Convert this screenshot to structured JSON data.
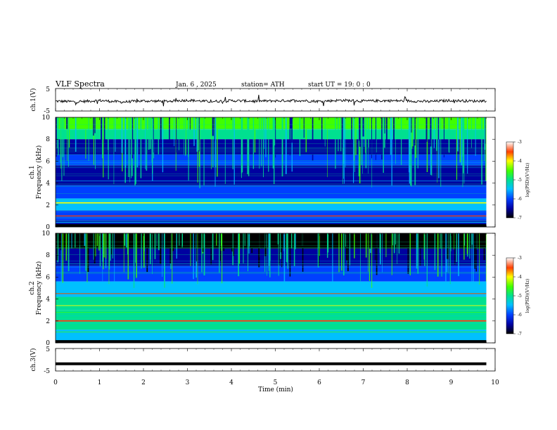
{
  "header": {
    "title": "VLF  Spectra",
    "date": "Jan. 6  , 2025",
    "station": "station= ATH",
    "start": "start  UT  =   19: 0  : 0"
  },
  "colors": {
    "colormap": [
      "#000000",
      "#0000a0",
      "#0040ff",
      "#00c0ff",
      "#00e090",
      "#40ff00",
      "#ffff00",
      "#ff4000",
      "#ffffff"
    ],
    "trace": "#000000"
  },
  "chart_data": [
    {
      "type": "line",
      "ylabel": "ch.1(V)",
      "ylim": [
        -5,
        5
      ],
      "yticks": [
        "5",
        "-5"
      ],
      "xlim": [
        0,
        10
      ],
      "x": [
        0,
        0.5,
        1,
        1.5,
        2,
        2.5,
        3,
        3.5,
        4,
        4.5,
        5,
        5.5,
        6,
        6.5,
        7,
        7.5,
        8,
        8.5,
        9,
        9.5,
        9.8
      ],
      "y": [
        -0.6,
        -0.9,
        -0.3,
        -1.0,
        -0.5,
        -0.7,
        -0.2,
        -0.8,
        -0.4,
        -0.6,
        -0.5,
        -0.3,
        -0.7,
        -0.2,
        -0.6,
        -0.4,
        -0.5,
        -0.8,
        -0.3,
        -0.6,
        -0.4
      ]
    },
    {
      "type": "heatmap",
      "ylabel": "ch.1\nFrequency (kHz)",
      "ylim": [
        0,
        10
      ],
      "yticks": [
        "0",
        "2",
        "4",
        "6",
        "8",
        "10"
      ],
      "xlim": [
        0,
        10
      ],
      "data_xmax": 9.8,
      "colorbar": {
        "label": "log(PSD)(V²/Hz)",
        "range": [
          -7,
          -3
        ],
        "ticks": [
          "-3",
          "-4",
          "-5",
          "-6",
          "-7"
        ]
      },
      "lines_khz": [
        1.0,
        2.2,
        0.4
      ]
    },
    {
      "type": "heatmap",
      "ylabel": "ch.2\nFrequency (kHz)",
      "ylim": [
        0,
        10
      ],
      "yticks": [
        "0",
        "2",
        "4",
        "6",
        "8",
        "10"
      ],
      "xlim": [
        0,
        10
      ],
      "data_xmax": 9.8,
      "colorbar": {
        "label": "log(PSD)(V²/Hz)",
        "range": [
          -7,
          -3
        ],
        "ticks": [
          "-3",
          "-4",
          "-5",
          "-6",
          "-7"
        ]
      },
      "lines_khz": [
        2.0,
        4.5,
        3.4
      ]
    },
    {
      "type": "line",
      "ylabel": "ch.3(V)",
      "ylim": [
        -5,
        5
      ],
      "yticks": [
        "5",
        "-5"
      ],
      "xlim": [
        0,
        10
      ],
      "x": [
        0,
        9.8
      ],
      "y": [
        -1.8,
        -1.8
      ]
    }
  ],
  "xaxis": {
    "label": "Time  (min)",
    "ticks": [
      "0",
      "1",
      "2",
      "3",
      "4",
      "5",
      "6",
      "7",
      "8",
      "9",
      "10"
    ]
  }
}
